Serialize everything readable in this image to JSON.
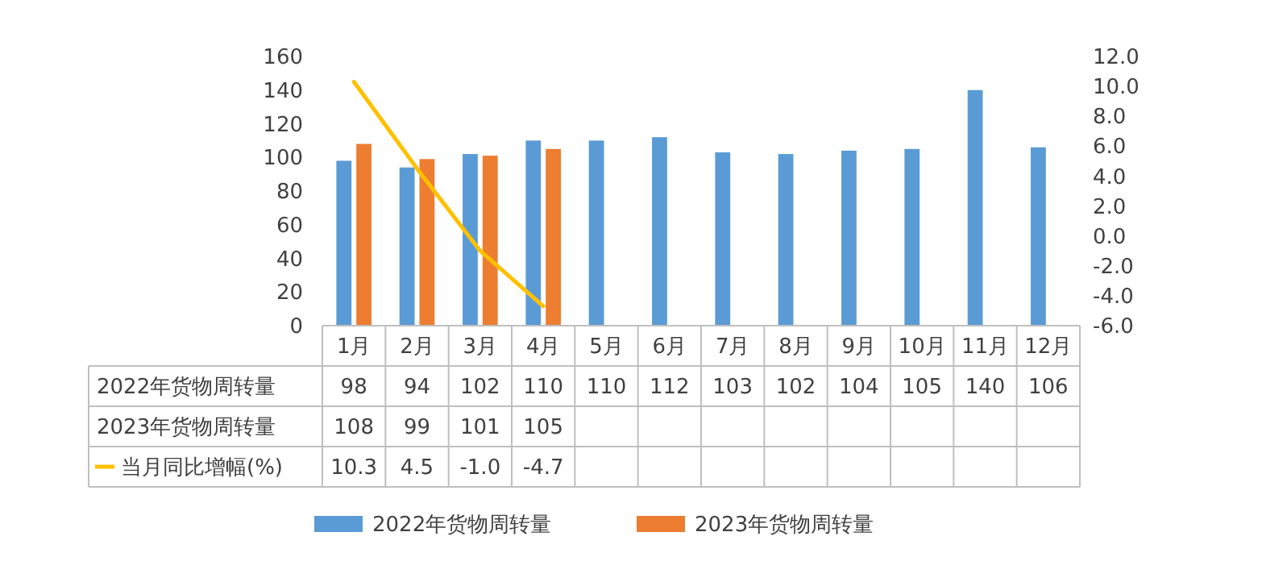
{
  "chart_data": {
    "type": "bar",
    "categories": [
      "1月",
      "2月",
      "3月",
      "4月",
      "5月",
      "6月",
      "7月",
      "8月",
      "9月",
      "10月",
      "11月",
      "12月"
    ],
    "series": [
      {
        "name": "2022年货物周转量",
        "color": "#5b9bd5",
        "values": [
          98,
          94,
          102,
          110,
          110,
          112,
          103,
          102,
          104,
          105,
          140,
          106
        ],
        "value_labels": [
          "98",
          "94",
          "102",
          "110",
          "110",
          "112",
          "103",
          "102",
          "104",
          "105",
          "140",
          "106"
        ]
      },
      {
        "name": "2023年货物周转量",
        "color": "#ed7d31",
        "values": [
          108,
          99,
          101,
          105,
          null,
          null,
          null,
          null,
          null,
          null,
          null,
          null
        ],
        "value_labels": [
          "108",
          "99",
          "101",
          "105",
          null,
          null,
          null,
          null,
          null,
          null,
          null,
          null
        ]
      },
      {
        "name": "当月同比增幅(%)",
        "type": "line",
        "axis": "y2",
        "color": "#ffc000",
        "values": [
          10.3,
          4.5,
          -1.0,
          -4.7,
          null,
          null,
          null,
          null,
          null,
          null,
          null,
          null
        ],
        "value_labels": [
          "10.3",
          "4.5",
          "-1.0",
          "-4.7",
          null,
          null,
          null,
          null,
          null,
          null,
          null,
          null
        ]
      }
    ],
    "ylim": [
      0,
      160
    ],
    "yticks": [
      0,
      20,
      40,
      60,
      80,
      100,
      120,
      140,
      160
    ],
    "y2lim": [
      -6,
      12
    ],
    "y2ticks": [
      {
        "value": -6,
        "label": "-6.0"
      },
      {
        "value": -4,
        "label": "-4.0"
      },
      {
        "value": -2,
        "label": "-2.0"
      },
      {
        "value": 0,
        "label": "0.0"
      },
      {
        "value": 2,
        "label": "2.0"
      },
      {
        "value": 4,
        "label": "4.0"
      },
      {
        "value": 6,
        "label": "6.0"
      },
      {
        "value": 8,
        "label": "8.0"
      },
      {
        "value": 10,
        "label": "10.0"
      },
      {
        "value": 12,
        "label": "12.0"
      }
    ],
    "grid": false,
    "legend": "bottom",
    "marker": "none",
    "line_style": "solid"
  }
}
